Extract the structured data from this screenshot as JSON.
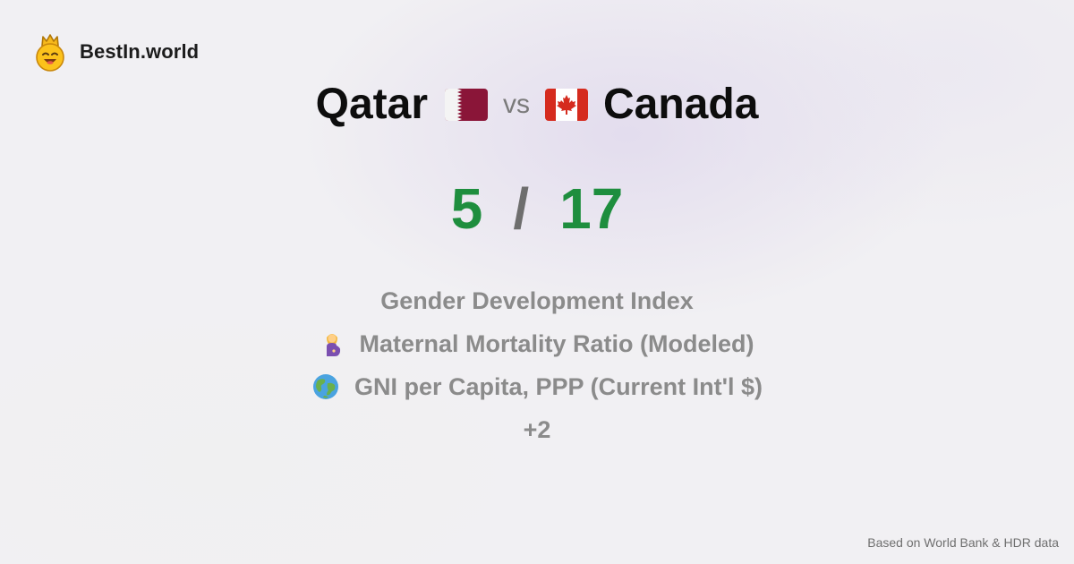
{
  "brand": {
    "name": "BestIn.world",
    "logo_icon": "crowned-smiley-icon"
  },
  "comparison": {
    "left": {
      "country": "Qatar",
      "flag_icon": "qatar-flag-icon"
    },
    "vs_label": "vs",
    "right": {
      "country": "Canada",
      "flag_icon": "canada-flag-icon"
    }
  },
  "score": {
    "left": "5",
    "separator": "/",
    "right": "17",
    "color": "#1e8e3e"
  },
  "metrics": [
    {
      "label": "Gender Development Index",
      "icon": ""
    },
    {
      "label": "Maternal Mortality Ratio (Modeled)",
      "icon": "pregnant-woman-icon"
    },
    {
      "label": "GNI per Capita, PPP (Current Int'l $)",
      "icon": "globe-icon"
    }
  ],
  "more_label": "+2",
  "footer": "Based on World Bank & HDR data"
}
